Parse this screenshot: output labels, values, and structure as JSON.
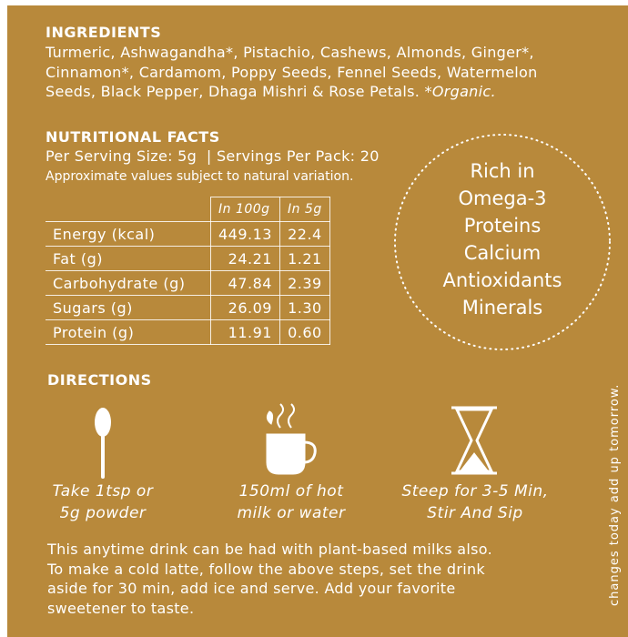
{
  "ingredients": {
    "heading": "INGREDIENTS",
    "lines": [
      "Turmeric, Ashwagandha*, Pistachio, Cashews, Almonds, Ginger*,",
      "Cinnamon*, Cardamom, Poppy Seeds, Fennel Seeds, Watermelon",
      "Seeds, Black Pepper, Dhaga Mishri & Rose Petals."
    ],
    "note": "*Organic."
  },
  "nutrition": {
    "heading": "NUTRITIONAL FACTS",
    "serving": "Per Serving Size: 5g  | Servings Per Pack: 20",
    "note": "Approximate values subject to natural variation."
  },
  "table": {
    "columns": [
      "In 100g",
      "In 5g"
    ],
    "rows": [
      [
        "Energy (kcal)",
        "449.13",
        "22.4"
      ],
      [
        "Fat (g)",
        "24.21",
        "1.21"
      ],
      [
        "Carbohydrate (g)",
        "47.84",
        "2.39"
      ],
      [
        "Sugars (g)",
        "26.09",
        "1.30"
      ],
      [
        "Protein (g)",
        "11.91",
        "0.60"
      ]
    ]
  },
  "badge": {
    "lines": [
      "Rich in",
      "Omega-3",
      "Proteins",
      "Calcium",
      "Antioxidants",
      "Minerals"
    ]
  },
  "directions": {
    "heading": "DIRECTIONS",
    "steps": [
      {
        "lines": [
          "Take 1tsp or",
          "5g powder"
        ]
      },
      {
        "lines": [
          "150ml of hot",
          "milk or water"
        ]
      },
      {
        "lines": [
          "Steep for 3-5 Min,",
          "Stir And Sip"
        ]
      }
    ]
  },
  "footer": {
    "lines": [
      "This anytime drink can be had with plant-based milks also.",
      "To make a cold latte, follow the above steps, set the drink",
      "aside for 30 min, add ice and serve. Add your favorite",
      "sweetener to taste."
    ]
  },
  "side_text": "changes today add up tomorrow."
}
